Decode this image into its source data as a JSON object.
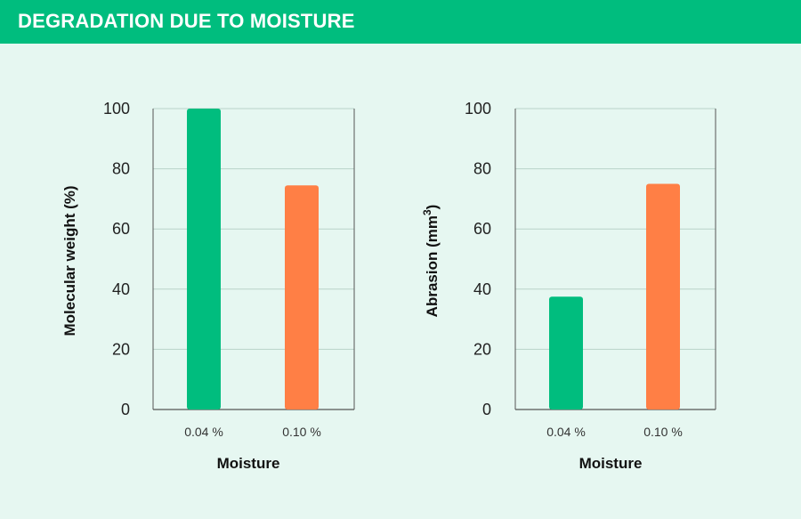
{
  "header": {
    "title": "DEGRADATION DUE TO MOISTURE"
  },
  "colors": {
    "header": "#00bd7e",
    "background": "#e6f7f1",
    "green": "#00bd7e",
    "orange": "#ff7f45",
    "grid": "#b9d3c9",
    "axis": "#555555"
  },
  "chart_data": [
    {
      "type": "bar",
      "categories": [
        "0.04 %",
        "0.10 %"
      ],
      "values": [
        100,
        74.5
      ],
      "colors": [
        "#00bd7e",
        "#ff7f45"
      ],
      "xlabel": "Moisture",
      "ylabel": "Molecular weight (%)",
      "ylim": [
        0,
        100
      ],
      "yticks": [
        0,
        20,
        40,
        60,
        80,
        100
      ],
      "grid": true
    },
    {
      "type": "bar",
      "categories": [
        "0.04 %",
        "0.10 %"
      ],
      "values": [
        37.5,
        75
      ],
      "colors": [
        "#00bd7e",
        "#ff7f45"
      ],
      "xlabel": "Moisture",
      "ylabel": "Abrasion (mm",
      "ylabel_sup": "3",
      "ylabel_close": ")",
      "ylim": [
        0,
        100
      ],
      "yticks": [
        0,
        20,
        40,
        60,
        80,
        100
      ],
      "grid": true
    }
  ]
}
